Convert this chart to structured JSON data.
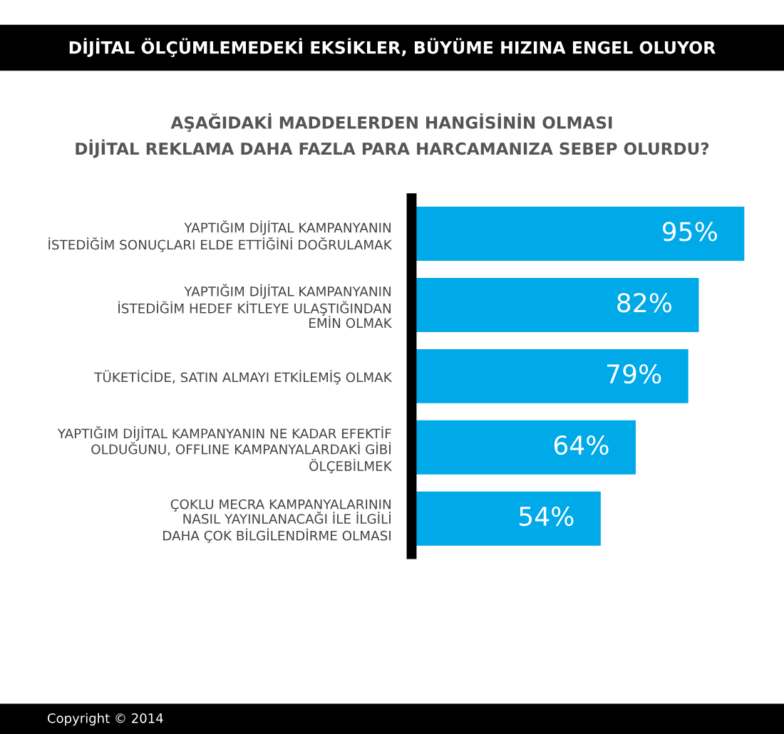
{
  "chart_data": {
    "type": "bar",
    "orientation": "horizontal",
    "title": "DİJİTAL ÖLÇÜMLEMEDEKİ EKSİKLER, BÜYÜME HIZINA ENGEL OLUYOR",
    "subtitle": "AŞAĞIDAKİ MADDELERDEN HANGİSİNİN OLMASI\nDİJİTAL REKLAMA DAHA FAZLA PARA HARCAMANIZA SEBEP OLURDU?",
    "categories": [
      "YAPTIĞIM DİJİTAL KAMPANYANIN\nİSTEDİĞİM SONUÇLARI ELDE ETTİĞİNİ DOĞRULAMAK",
      "YAPTIĞIM DİJİTAL KAMPANYANIN\nİSTEDİĞİM HEDEF KİTLEYE ULAŞTIĞINDAN\nEMİN OLMAK",
      "TÜKETİCİDE, SATIN ALMAYI ETKİLEMİŞ OLMAK",
      "YAPTIĞIM DİJİTAL KAMPANYANIN NE KADAR EFEKTİF\nOLDUĞUNU, OFFLINE KAMPANYALARDAKİ GİBİ\nÖLÇEBİLMEK",
      "ÇOKLU MECRA KAMPANYALARININ\nNASIL YAYINLANACAĞI İLE İLGİLİ\nDAHA ÇOK BİLGİLENDİRME OLMASI"
    ],
    "values": [
      95,
      82,
      79,
      64,
      54
    ],
    "value_labels": [
      "95%",
      "82%",
      "79%",
      "64%",
      "54%"
    ],
    "color": "#00a9e8",
    "annotations": [
      "Copyright © 2014"
    ]
  }
}
